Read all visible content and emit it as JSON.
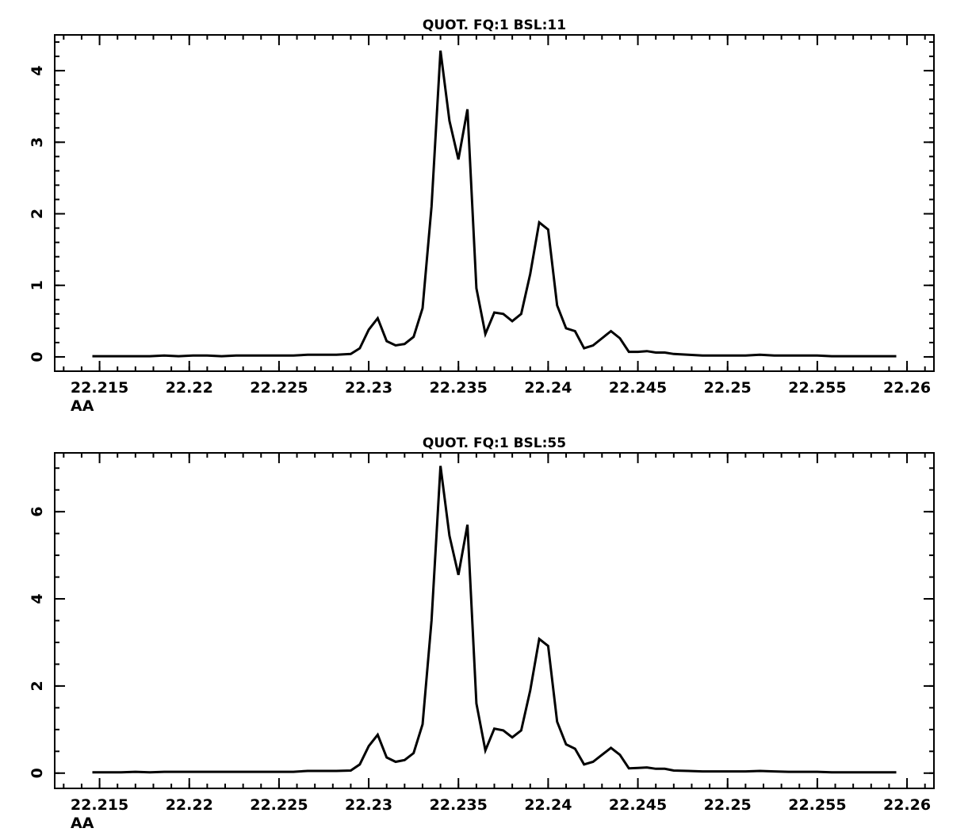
{
  "chart_data": [
    {
      "type": "line",
      "title": "QUOT. FQ:1 BSL:11",
      "xlabel": "AA",
      "ylabel": "",
      "xlim": [
        22.2125,
        22.2615
      ],
      "ylim": [
        -0.2,
        4.5
      ],
      "x_ticks": [
        22.215,
        22.22,
        22.225,
        22.23,
        22.235,
        22.24,
        22.245,
        22.25,
        22.255,
        22.26
      ],
      "x_tick_labels": [
        "22.215",
        "22.22",
        "22.225",
        "22.23",
        "22.235",
        "22.24",
        "22.245",
        "22.25",
        "22.255",
        "22.26"
      ],
      "y_ticks": [
        0,
        1,
        2,
        3,
        4
      ],
      "y_tick_labels": [
        "0",
        "1",
        "2",
        "3",
        "4"
      ],
      "grid": false,
      "color": "#000000",
      "x": [
        22.2146,
        22.2154,
        22.2162,
        22.217,
        22.2178,
        22.2186,
        22.2194,
        22.2202,
        22.221,
        22.2218,
        22.2226,
        22.2234,
        22.2242,
        22.225,
        22.2258,
        22.2266,
        22.2274,
        22.2282,
        22.229,
        22.2295,
        22.23,
        22.2305,
        22.231,
        22.2315,
        22.232,
        22.2325,
        22.233,
        22.2335,
        22.234,
        22.2345,
        22.235,
        22.2355,
        22.236,
        22.2365,
        22.237,
        22.2375,
        22.238,
        22.2385,
        22.239,
        22.2395,
        22.24,
        22.2405,
        22.241,
        22.2415,
        22.242,
        22.2425,
        22.243,
        22.2435,
        22.244,
        22.2445,
        22.245,
        22.2455,
        22.246,
        22.2465,
        22.247,
        22.2478,
        22.2486,
        22.2494,
        22.2502,
        22.251,
        22.2518,
        22.2526,
        22.2534,
        22.2542,
        22.255,
        22.2558,
        22.2566,
        22.2574,
        22.2582,
        22.259,
        22.2594
      ],
      "y": [
        0.01,
        0.01,
        0.01,
        0.01,
        0.01,
        0.02,
        0.01,
        0.02,
        0.02,
        0.01,
        0.02,
        0.02,
        0.02,
        0.02,
        0.02,
        0.03,
        0.03,
        0.03,
        0.04,
        0.12,
        0.38,
        0.54,
        0.22,
        0.16,
        0.18,
        0.28,
        0.68,
        2.1,
        4.28,
        3.3,
        2.76,
        3.46,
        0.96,
        0.32,
        0.62,
        0.6,
        0.5,
        0.6,
        1.16,
        1.88,
        1.78,
        0.72,
        0.4,
        0.36,
        0.12,
        0.16,
        0.26,
        0.36,
        0.26,
        0.07,
        0.07,
        0.08,
        0.06,
        0.06,
        0.04,
        0.03,
        0.02,
        0.02,
        0.02,
        0.02,
        0.03,
        0.02,
        0.02,
        0.02,
        0.02,
        0.01,
        0.01,
        0.01,
        0.01,
        0.01,
        0.01
      ]
    },
    {
      "type": "line",
      "title": "QUOT. FQ:1 BSL:55",
      "xlabel": "AA",
      "ylabel": "",
      "xlim": [
        22.2125,
        22.2615
      ],
      "ylim": [
        -0.35,
        7.35
      ],
      "x_ticks": [
        22.215,
        22.22,
        22.225,
        22.23,
        22.235,
        22.24,
        22.245,
        22.25,
        22.255,
        22.26
      ],
      "x_tick_labels": [
        "22.215",
        "22.22",
        "22.225",
        "22.23",
        "22.235",
        "22.24",
        "22.245",
        "22.25",
        "22.255",
        "22.26"
      ],
      "y_ticks": [
        0,
        2,
        4,
        6
      ],
      "y_tick_labels": [
        "0",
        "2",
        "4",
        "6"
      ],
      "grid": false,
      "color": "#000000",
      "x": [
        22.2146,
        22.2154,
        22.2162,
        22.217,
        22.2178,
        22.2186,
        22.2194,
        22.2202,
        22.221,
        22.2218,
        22.2226,
        22.2234,
        22.2242,
        22.225,
        22.2258,
        22.2266,
        22.2274,
        22.2282,
        22.229,
        22.2295,
        22.23,
        22.2305,
        22.231,
        22.2315,
        22.232,
        22.2325,
        22.233,
        22.2335,
        22.234,
        22.2345,
        22.235,
        22.2355,
        22.236,
        22.2365,
        22.237,
        22.2375,
        22.238,
        22.2385,
        22.239,
        22.2395,
        22.24,
        22.2405,
        22.241,
        22.2415,
        22.242,
        22.2425,
        22.243,
        22.2435,
        22.244,
        22.2445,
        22.245,
        22.2455,
        22.246,
        22.2465,
        22.247,
        22.2478,
        22.2486,
        22.2494,
        22.2502,
        22.251,
        22.2518,
        22.2526,
        22.2534,
        22.2542,
        22.255,
        22.2558,
        22.2566,
        22.2574,
        22.2582,
        22.259,
        22.2594
      ],
      "y": [
        0.02,
        0.02,
        0.02,
        0.03,
        0.02,
        0.03,
        0.03,
        0.03,
        0.03,
        0.03,
        0.03,
        0.03,
        0.03,
        0.03,
        0.03,
        0.05,
        0.05,
        0.05,
        0.06,
        0.2,
        0.62,
        0.88,
        0.36,
        0.26,
        0.3,
        0.46,
        1.12,
        3.5,
        7.05,
        5.45,
        4.55,
        5.7,
        1.6,
        0.52,
        1.02,
        0.98,
        0.82,
        0.98,
        1.9,
        3.08,
        2.92,
        1.18,
        0.66,
        0.56,
        0.2,
        0.26,
        0.42,
        0.58,
        0.42,
        0.11,
        0.12,
        0.13,
        0.1,
        0.1,
        0.06,
        0.05,
        0.04,
        0.04,
        0.04,
        0.04,
        0.05,
        0.04,
        0.03,
        0.03,
        0.03,
        0.02,
        0.02,
        0.02,
        0.02,
        0.02,
        0.02
      ]
    }
  ]
}
